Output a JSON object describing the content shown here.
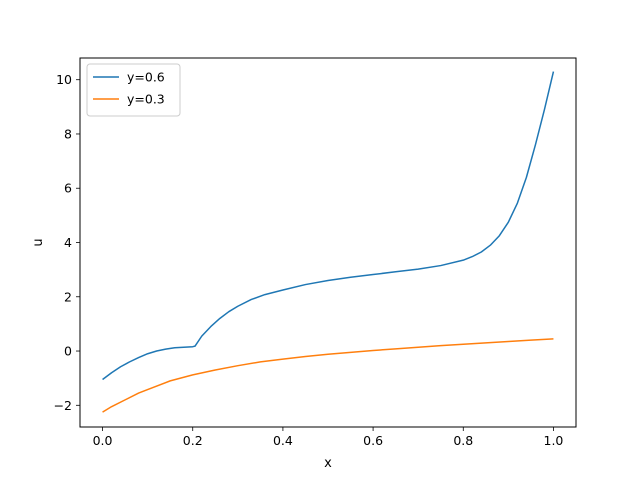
{
  "chart_data": {
    "type": "line",
    "title": "",
    "xlabel": "x",
    "ylabel": "u",
    "xlim": [
      -0.05,
      1.05
    ],
    "ylim": [
      -2.8,
      10.8
    ],
    "xticks": [
      0.0,
      0.2,
      0.4,
      0.6,
      0.8,
      1.0
    ],
    "xtick_labels": [
      "0.0",
      "0.2",
      "0.4",
      "0.6",
      "0.8",
      "1.0"
    ],
    "yticks": [
      -2,
      0,
      2,
      4,
      6,
      8,
      10
    ],
    "ytick_labels": [
      "−2",
      "0",
      "2",
      "4",
      "6",
      "8",
      "10"
    ],
    "grid": false,
    "legend_position": "top-left",
    "series": [
      {
        "name": "y=0.6",
        "color": "#1f77b4",
        "x": [
          0.0,
          0.02,
          0.04,
          0.06,
          0.08,
          0.1,
          0.12,
          0.14,
          0.16,
          0.18,
          0.2,
          0.205,
          0.22,
          0.24,
          0.26,
          0.28,
          0.3,
          0.33,
          0.36,
          0.4,
          0.45,
          0.5,
          0.55,
          0.6,
          0.65,
          0.7,
          0.75,
          0.8,
          0.82,
          0.84,
          0.86,
          0.88,
          0.9,
          0.92,
          0.94,
          0.96,
          0.98,
          1.0
        ],
        "y": [
          -1.05,
          -0.8,
          -0.58,
          -0.4,
          -0.24,
          -0.1,
          0.0,
          0.07,
          0.12,
          0.14,
          0.16,
          0.18,
          0.55,
          0.9,
          1.2,
          1.45,
          1.65,
          1.9,
          2.08,
          2.25,
          2.45,
          2.6,
          2.72,
          2.82,
          2.92,
          3.02,
          3.15,
          3.35,
          3.48,
          3.65,
          3.9,
          4.25,
          4.75,
          5.45,
          6.4,
          7.6,
          8.9,
          10.3
        ]
      },
      {
        "name": "y=0.3",
        "color": "#ff7f0e",
        "x": [
          0.0,
          0.02,
          0.05,
          0.08,
          0.1,
          0.15,
          0.2,
          0.25,
          0.3,
          0.35,
          0.4,
          0.45,
          0.5,
          0.55,
          0.6,
          0.65,
          0.7,
          0.75,
          0.8,
          0.85,
          0.9,
          0.95,
          1.0
        ],
        "y": [
          -2.25,
          -2.05,
          -1.8,
          -1.55,
          -1.42,
          -1.1,
          -0.88,
          -0.7,
          -0.54,
          -0.4,
          -0.3,
          -0.2,
          -0.12,
          -0.05,
          0.02,
          0.08,
          0.14,
          0.2,
          0.25,
          0.3,
          0.35,
          0.4,
          0.45
        ]
      }
    ]
  }
}
